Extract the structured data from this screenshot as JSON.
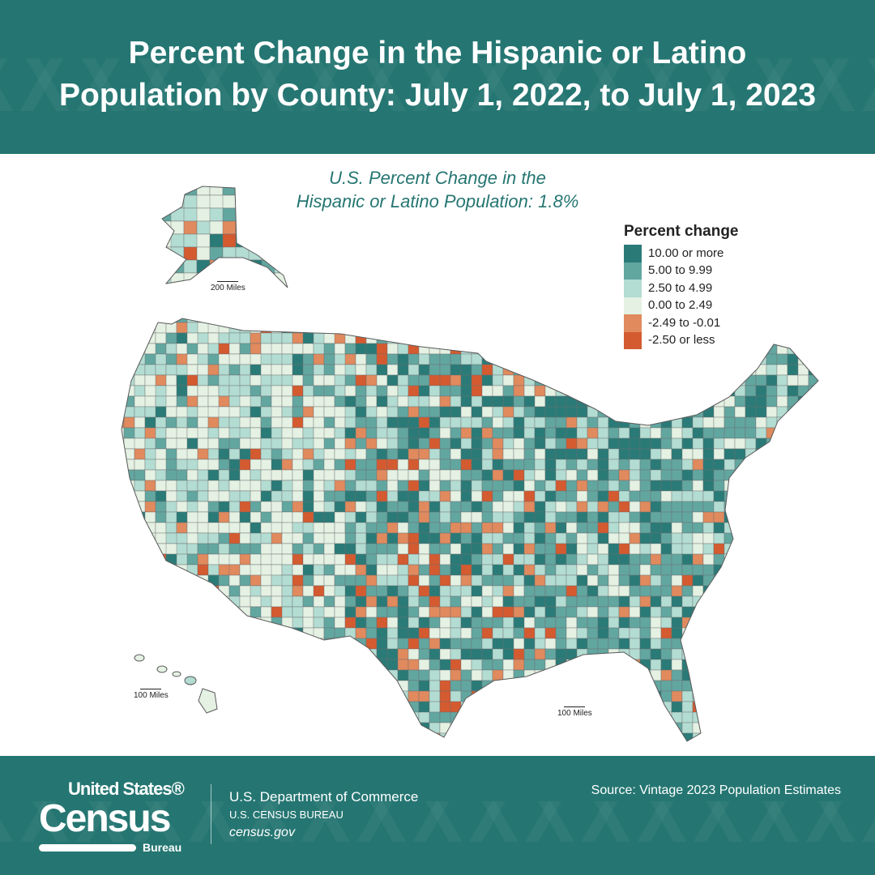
{
  "header": {
    "title_line1": "Percent Change in the Hispanic or Latino",
    "title_line2": "Population by County: July 1, 2022, to July 1, 2023"
  },
  "subtitle": {
    "line1": "U.S. Percent Change in the",
    "line2": "Hispanic or Latino Population: 1.8%"
  },
  "legend": {
    "title": "Percent change",
    "items": [
      {
        "label": "10.00 or more",
        "color": "#2a7b78"
      },
      {
        "label": "5.00 to 9.99",
        "color": "#62a6a0"
      },
      {
        "label": "2.50 to 4.99",
        "color": "#b3dcd2"
      },
      {
        "label": "0.00 to 2.49",
        "color": "#e4f1e3"
      },
      {
        "label": "-2.49 to -0.01",
        "color": "#e08a5e"
      },
      {
        "label": "-2.50 or less",
        "color": "#d45a30"
      }
    ]
  },
  "scales": {
    "alaska": "200 Miles",
    "hawaii": "100 Miles",
    "conus": "100 Miles"
  },
  "footer": {
    "logo_top": "United States®",
    "logo_main": "Census",
    "logo_bottom": "Bureau",
    "dept": "U.S. Department of Commerce",
    "bureau": "U.S. CENSUS BUREAU",
    "site": "census.gov",
    "source": "Source: Vintage 2023 Population Estimates"
  },
  "colors": {
    "band": "#257672",
    "border": "#5a5a5a"
  }
}
